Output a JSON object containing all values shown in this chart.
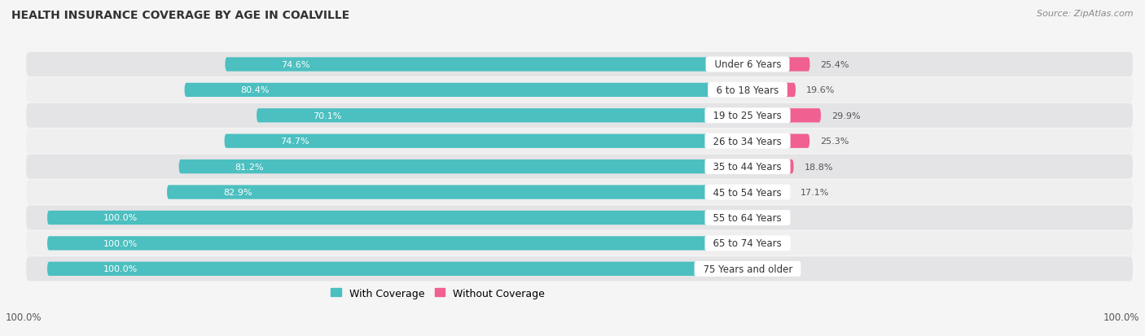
{
  "title": "HEALTH INSURANCE COVERAGE BY AGE IN COALVILLE",
  "source": "Source: ZipAtlas.com",
  "categories": [
    "Under 6 Years",
    "6 to 18 Years",
    "19 to 25 Years",
    "26 to 34 Years",
    "35 to 44 Years",
    "45 to 54 Years",
    "55 to 64 Years",
    "65 to 74 Years",
    "75 Years and older"
  ],
  "with_coverage": [
    74.6,
    80.4,
    70.1,
    74.7,
    81.2,
    82.9,
    100.0,
    100.0,
    100.0
  ],
  "without_coverage": [
    25.4,
    19.6,
    29.9,
    25.3,
    18.8,
    17.1,
    0.0,
    0.0,
    0.0
  ],
  "with_coverage_color": "#4cbfc0",
  "without_coverage_color_strong": "#f06090",
  "without_coverage_color_weak": "#f5a0c0",
  "row_color_dark": "#e4e4e6",
  "row_color_light": "#efefef",
  "background_color": "#f5f5f5",
  "title_fontsize": 10,
  "label_fontsize": 8.5,
  "bar_value_fontsize": 8,
  "legend_fontsize": 9,
  "source_fontsize": 8
}
